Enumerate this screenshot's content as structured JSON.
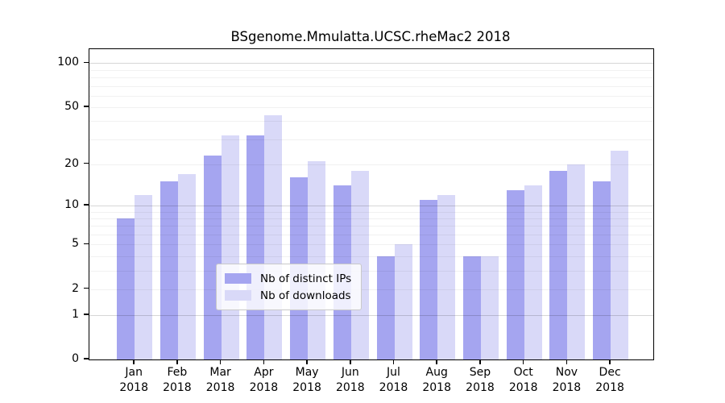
{
  "title": "BSgenome.Mmulatta.UCSC.rheMac2 2018",
  "colors": {
    "ips_bar": "#a5a5f0",
    "downloads_bar": "#d9d9f8",
    "grid_minor": "rgba(0,0,0,0.055)",
    "grid_major": "rgba(0,0,0,0.16)",
    "axis": "#000000"
  },
  "legend": {
    "items": [
      {
        "label": "Nb of distinct IPs",
        "series": "ips"
      },
      {
        "label": "Nb of downloads",
        "series": "downloads"
      }
    ]
  },
  "y_axis": {
    "tick_labels": [
      "100",
      "50",
      "20",
      "10",
      "5",
      "2",
      "1",
      "0"
    ]
  },
  "x_axis": {
    "year_line": "2018"
  },
  "chart_data": {
    "type": "bar",
    "title": "BSgenome.Mmulatta.UCSC.rheMac2 2018",
    "categories": [
      "Jan",
      "Feb",
      "Mar",
      "Apr",
      "May",
      "Jun",
      "Jul",
      "Aug",
      "Sep",
      "Oct",
      "Nov",
      "Dec"
    ],
    "year": "2018",
    "series": [
      {
        "name": "Nb of distinct IPs",
        "values": [
          8,
          15,
          23,
          32,
          16,
          14,
          4,
          11,
          4,
          13,
          18,
          15
        ],
        "color": "#a5a5f0"
      },
      {
        "name": "Nb of downloads",
        "values": [
          12,
          17,
          32,
          44,
          21,
          18,
          5,
          12,
          4,
          14,
          20,
          25
        ],
        "color": "#d9d9f8"
      }
    ],
    "xlabel": "",
    "ylabel": "",
    "yscale": "log1p",
    "yticks": [
      0,
      1,
      2,
      5,
      10,
      20,
      50,
      100
    ],
    "grid_minor_values": [
      2,
      3,
      4,
      5,
      6,
      7,
      8,
      9,
      20,
      30,
      40,
      50,
      60,
      70,
      80,
      90
    ],
    "grid_major_values": [
      1,
      10,
      100
    ],
    "ylim": [
      0,
      125
    ],
    "grid": true,
    "legend_position": "inside-bottom-center"
  }
}
